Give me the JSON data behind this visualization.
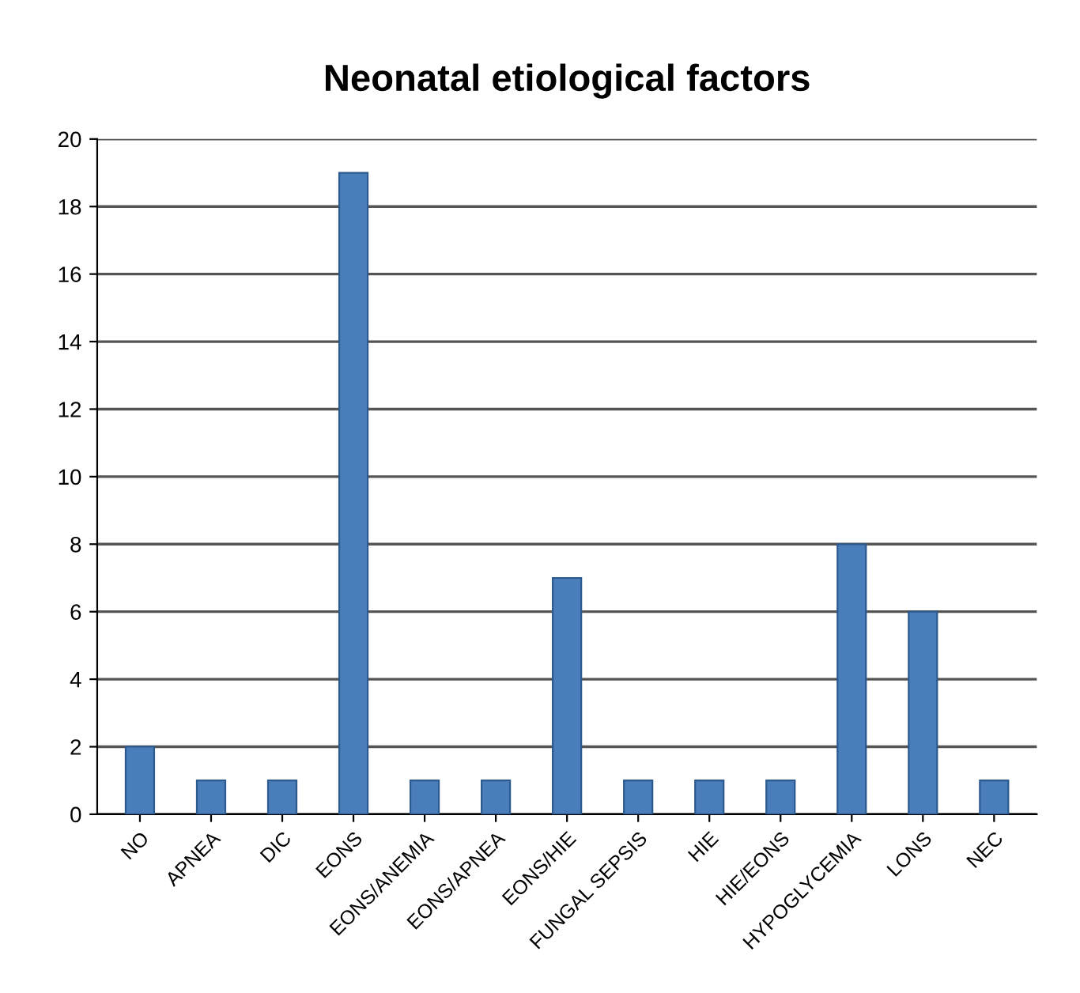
{
  "chart_data": {
    "type": "bar",
    "title": "Neonatal etiological factors",
    "categories": [
      "NO",
      "APNEA",
      "DIC",
      "EONS",
      "EONS/ANEMIA",
      "EONS/APNEA",
      "EONS/HIE",
      "FUNGAL SEPSIS",
      "HIE",
      "HIE/EONS",
      "HYPOGLYCEMIA",
      "LONS",
      "NEC"
    ],
    "values": [
      2,
      1,
      1,
      19,
      1,
      1,
      7,
      1,
      1,
      1,
      8,
      6,
      1
    ],
    "color": "#4a7ebb",
    "ylim": [
      0,
      20
    ],
    "yticks": [
      0,
      2,
      4,
      6,
      8,
      10,
      12,
      14,
      16,
      18,
      20
    ],
    "grid": "y"
  }
}
